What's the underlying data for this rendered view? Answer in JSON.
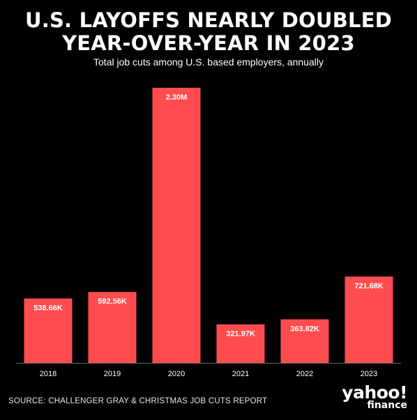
{
  "header": {
    "title_line1": "U.S. LAYOFFS NEARLY DOUBLED",
    "title_line2": "YEAR-OVER-YEAR IN 2023",
    "subtitle": "Total job cuts among U.S. based employers, annually"
  },
  "footer": {
    "source": "SOURCE: CHALLENGER GRAY & CHRISTMAS JOB CUTS REPORT",
    "logo_main": "yahoo!",
    "logo_sub": "finance"
  },
  "colors": {
    "background": "#000000",
    "bar": "#FF4D4F",
    "text": "#FFFFFF",
    "axis": "#666666"
  },
  "chart_data": {
    "type": "bar",
    "categories": [
      "2018",
      "2019",
      "2020",
      "2021",
      "2022",
      "2023"
    ],
    "values": [
      538660,
      592560,
      2300000,
      321970,
      363820,
      721680
    ],
    "data_labels": [
      "538.66K",
      "592.56K",
      "2.30M",
      "321.97K",
      "363.82K",
      "721.68K"
    ],
    "title": "U.S. LAYOFFS NEARLY DOUBLED YEAR-OVER-YEAR IN 2023",
    "subtitle": "Total job cuts among U.S. based employers, annually",
    "xlabel": "",
    "ylabel": "",
    "ylim": [
      0,
      2300000
    ],
    "grid": false,
    "legend": "none"
  }
}
